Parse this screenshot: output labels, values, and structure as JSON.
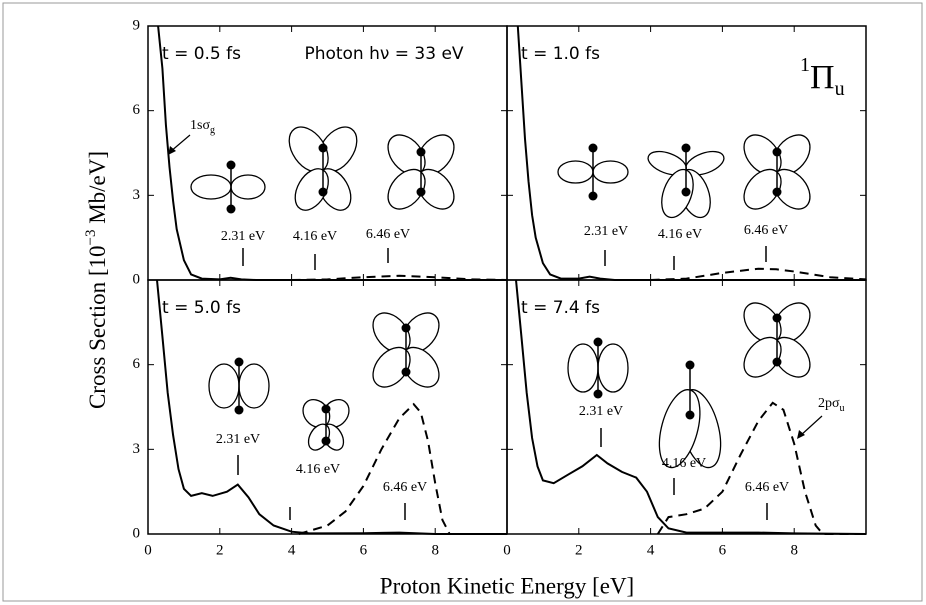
{
  "figure": {
    "ylabel": {
      "text": "Cross Section [10",
      "superscript": "−3",
      "text_after": " Mb/eV]"
    },
    "xlabel": "Proton Kinetic Energy [eV]",
    "photon": "Photon hν = 33 eV",
    "symmetry": {
      "superscript": "1",
      "text": "Π",
      "subscript": "u"
    },
    "curve_labels": [
      {
        "text": "1sσ",
        "subscript": "g"
      },
      {
        "text": "2pσ",
        "subscript": "u"
      }
    ]
  },
  "chart_data": [
    {
      "type": "line",
      "title": "t = 0.5 fs",
      "xlim": [
        0,
        10
      ],
      "ylim": [
        0,
        9
      ],
      "yticks": [
        0,
        3,
        6,
        9
      ],
      "energy_labels": [
        "2.31 eV",
        "4.16 eV",
        "6.46 eV"
      ],
      "series": [
        {
          "style": "solid",
          "color": "#000000",
          "x": [
            0.28,
            0.4,
            0.5,
            0.6,
            0.7,
            0.8,
            1.0,
            1.2,
            1.5,
            2.0,
            2.3,
            2.6,
            3.0,
            10
          ],
          "values": [
            9,
            7.5,
            5.5,
            4,
            2.8,
            1.8,
            0.7,
            0.2,
            0.05,
            0.02,
            0.08,
            0.02,
            0,
            0
          ]
        },
        {
          "style": "dashed",
          "color": "#000000",
          "x": [
            4,
            5,
            6,
            7,
            8,
            9,
            10
          ],
          "values": [
            0,
            0.02,
            0.1,
            0.15,
            0.1,
            0.02,
            0
          ]
        }
      ]
    },
    {
      "type": "line",
      "title": "t = 1.0 fs",
      "xlim": [
        0,
        10
      ],
      "ylim": [
        0,
        9
      ],
      "energy_labels": [
        "2.31 eV",
        "4.16 eV",
        "6.46 eV"
      ],
      "series": [
        {
          "style": "solid",
          "color": "#000000",
          "x": [
            0.3,
            0.4,
            0.5,
            0.6,
            0.7,
            0.8,
            1.0,
            1.2,
            1.5,
            2.0,
            2.3,
            2.6,
            3.0,
            10
          ],
          "values": [
            9,
            7,
            5,
            3.5,
            2.3,
            1.5,
            0.6,
            0.2,
            0.05,
            0.05,
            0.12,
            0.05,
            0,
            0
          ]
        },
        {
          "style": "dashed",
          "color": "#000000",
          "x": [
            4,
            5,
            6,
            7,
            7.5,
            8,
            9,
            10
          ],
          "values": [
            0,
            0.05,
            0.25,
            0.4,
            0.38,
            0.3,
            0.1,
            0.02
          ]
        }
      ]
    },
    {
      "type": "line",
      "title": "t = 5.0 fs",
      "xlim": [
        0,
        10
      ],
      "ylim": [
        0,
        9
      ],
      "yticks": [
        0,
        3,
        6
      ],
      "xticks": [
        0,
        2,
        4,
        6,
        8
      ],
      "energy_labels": [
        "2.31 eV",
        "4.16 eV",
        "6.46 eV"
      ],
      "series": [
        {
          "style": "solid",
          "color": "#000000",
          "x": [
            0.25,
            0.4,
            0.55,
            0.7,
            0.85,
            1.0,
            1.2,
            1.5,
            1.8,
            2.2,
            2.5,
            2.8,
            3.1,
            3.5,
            4.0,
            4.5,
            6.0,
            7.0,
            8.0,
            10
          ],
          "values": [
            9,
            7,
            5,
            3.5,
            2.3,
            1.6,
            1.35,
            1.45,
            1.35,
            1.5,
            1.75,
            1.3,
            0.7,
            0.3,
            0.08,
            0.02,
            0.03,
            0.05,
            0,
            0
          ]
        },
        {
          "style": "dashed",
          "color": "#000000",
          "x": [
            4.2,
            5,
            5.5,
            6,
            6.5,
            7,
            7.4,
            7.6,
            7.8,
            8,
            8.2,
            8.4,
            10
          ],
          "values": [
            0,
            0.3,
            0.8,
            1.7,
            3,
            4.1,
            4.6,
            4.3,
            3.3,
            1.8,
            0.5,
            0,
            0
          ]
        }
      ]
    },
    {
      "type": "line",
      "title": "t = 7.4 fs",
      "xlim": [
        0,
        10
      ],
      "ylim": [
        0,
        9
      ],
      "xticks": [
        0,
        2,
        4,
        6,
        8
      ],
      "energy_labels": [
        "2.31 eV",
        "4.16 eV",
        "6.46 eV"
      ],
      "series": [
        {
          "style": "solid",
          "color": "#000000",
          "x": [
            0.25,
            0.4,
            0.55,
            0.7,
            0.85,
            1.0,
            1.3,
            1.7,
            2.1,
            2.5,
            2.8,
            3.2,
            3.6,
            3.9,
            4.2,
            4.5,
            5,
            7,
            8,
            10
          ],
          "values": [
            9,
            7,
            5,
            3.4,
            2.4,
            1.9,
            1.8,
            2.1,
            2.4,
            2.8,
            2.5,
            2.2,
            2.0,
            1.5,
            0.6,
            0.2,
            0.05,
            0.05,
            0.02,
            0
          ]
        },
        {
          "style": "dashed",
          "color": "#000000",
          "x": [
            4.2,
            4.5,
            5,
            5.5,
            6,
            6.5,
            7,
            7.4,
            7.7,
            8,
            8.3,
            8.6,
            8.8,
            10
          ],
          "values": [
            0,
            0.6,
            0.7,
            0.9,
            1.5,
            2.8,
            4.0,
            4.65,
            4.4,
            3.2,
            1.5,
            0.3,
            0,
            0
          ]
        }
      ]
    }
  ]
}
